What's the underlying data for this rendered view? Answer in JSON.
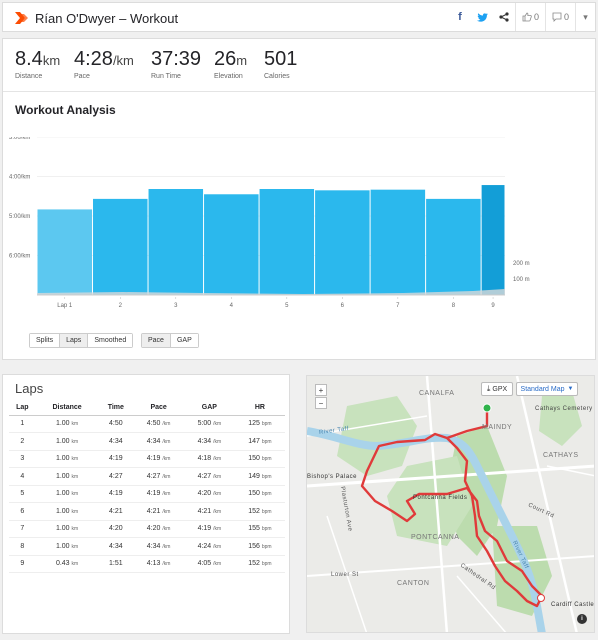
{
  "header": {
    "title": "Rían O'Dwyer – Workout",
    "brand_icon": "strava-chevron-icon",
    "brand_color": "#fc4c02",
    "facebook_label": "f",
    "kudos_count": "0",
    "comment_count": "0"
  },
  "stats": [
    {
      "value": "8.4",
      "unit": "km",
      "label": "Distance"
    },
    {
      "value": "4:28",
      "unit": "/km",
      "label": "Pace"
    },
    {
      "value": "37:39",
      "unit": "",
      "label": "Run Time"
    },
    {
      "value": "26",
      "unit": "m",
      "label": "Elevation"
    },
    {
      "value": "501",
      "unit": "",
      "label": "Calories"
    }
  ],
  "analysis": {
    "title": "Workout Analysis",
    "buttons_view": [
      "Splits",
      "Laps",
      "Smoothed"
    ],
    "buttons_metric": [
      "Pace",
      "GAP"
    ],
    "active_view": "Laps",
    "active_metric": "Pace"
  },
  "chart_data": {
    "type": "bar",
    "categories": [
      "Lap 1",
      "2",
      "3",
      "4",
      "5",
      "6",
      "7",
      "8",
      "9"
    ],
    "distances_km": [
      1.0,
      1.0,
      1.0,
      1.0,
      1.0,
      1.0,
      1.0,
      1.0,
      0.43
    ],
    "values": [
      "4:50",
      "4:34",
      "4:19",
      "4:27",
      "4:19",
      "4:21",
      "4:20",
      "4:34",
      "4:13"
    ],
    "values_sec_per_km": [
      290,
      274,
      259,
      267,
      259,
      261,
      260,
      274,
      253
    ],
    "y_ticks": [
      "3:00/km",
      "4:00/km",
      "5:00/km",
      "6:00/km"
    ],
    "y_tick_values_sec": [
      180,
      240,
      300,
      360
    ],
    "elevation_ticks": [
      "200 m",
      "100 m"
    ],
    "bar_color": "#2bb8ed",
    "first_bar_color": "#5cc8f0",
    "last_bar_color": "#139ed7",
    "ylim_sec": [
      180,
      420
    ]
  },
  "laps": {
    "title": "Laps",
    "columns": [
      "Lap",
      "Distance",
      "Time",
      "Pace",
      "GAP",
      "HR"
    ],
    "rows": [
      {
        "lap": "1",
        "dist": "1.00",
        "time": "4:50",
        "pace": "4:50",
        "gap": "5:00",
        "hr": "125"
      },
      {
        "lap": "2",
        "dist": "1.00",
        "time": "4:34",
        "pace": "4:34",
        "gap": "4:34",
        "hr": "147"
      },
      {
        "lap": "3",
        "dist": "1.00",
        "time": "4:19",
        "pace": "4:19",
        "gap": "4:18",
        "hr": "150"
      },
      {
        "lap": "4",
        "dist": "1.00",
        "time": "4:27",
        "pace": "4:27",
        "gap": "4:27",
        "hr": "149"
      },
      {
        "lap": "5",
        "dist": "1.00",
        "time": "4:19",
        "pace": "4:19",
        "gap": "4:20",
        "hr": "150"
      },
      {
        "lap": "6",
        "dist": "1.00",
        "time": "4:21",
        "pace": "4:21",
        "gap": "4:21",
        "hr": "152"
      },
      {
        "lap": "7",
        "dist": "1.00",
        "time": "4:20",
        "pace": "4:20",
        "gap": "4:19",
        "hr": "155"
      },
      {
        "lap": "8",
        "dist": "1.00",
        "time": "4:34",
        "pace": "4:34",
        "gap": "4:24",
        "hr": "156"
      },
      {
        "lap": "9",
        "dist": "0.43",
        "time": "1:51",
        "pace": "4:13",
        "gap": "4:05",
        "hr": "152"
      }
    ],
    "units": {
      "dist": "km",
      "pace": "/km",
      "hr": "bpm"
    }
  },
  "map": {
    "zoom_in": "+",
    "zoom_out": "−",
    "gpx_label": "GPX",
    "map_type_label": "Standard Map",
    "labels": [
      "CANALFA",
      "Cathays Cemetery",
      "MAINDY",
      "CATHAYS",
      "River Taff",
      "Bishop's Palace",
      "Pontcanna Fields",
      "PONTCANNA",
      "Court Rd",
      "CANTON",
      "Cathedral Rd",
      "River Taff",
      "Cardiff Castle",
      "Plasturton Ave",
      "Lower St"
    ],
    "route_color": "#e03a3a",
    "start_color": "#2fb34a",
    "info_label": "i"
  }
}
